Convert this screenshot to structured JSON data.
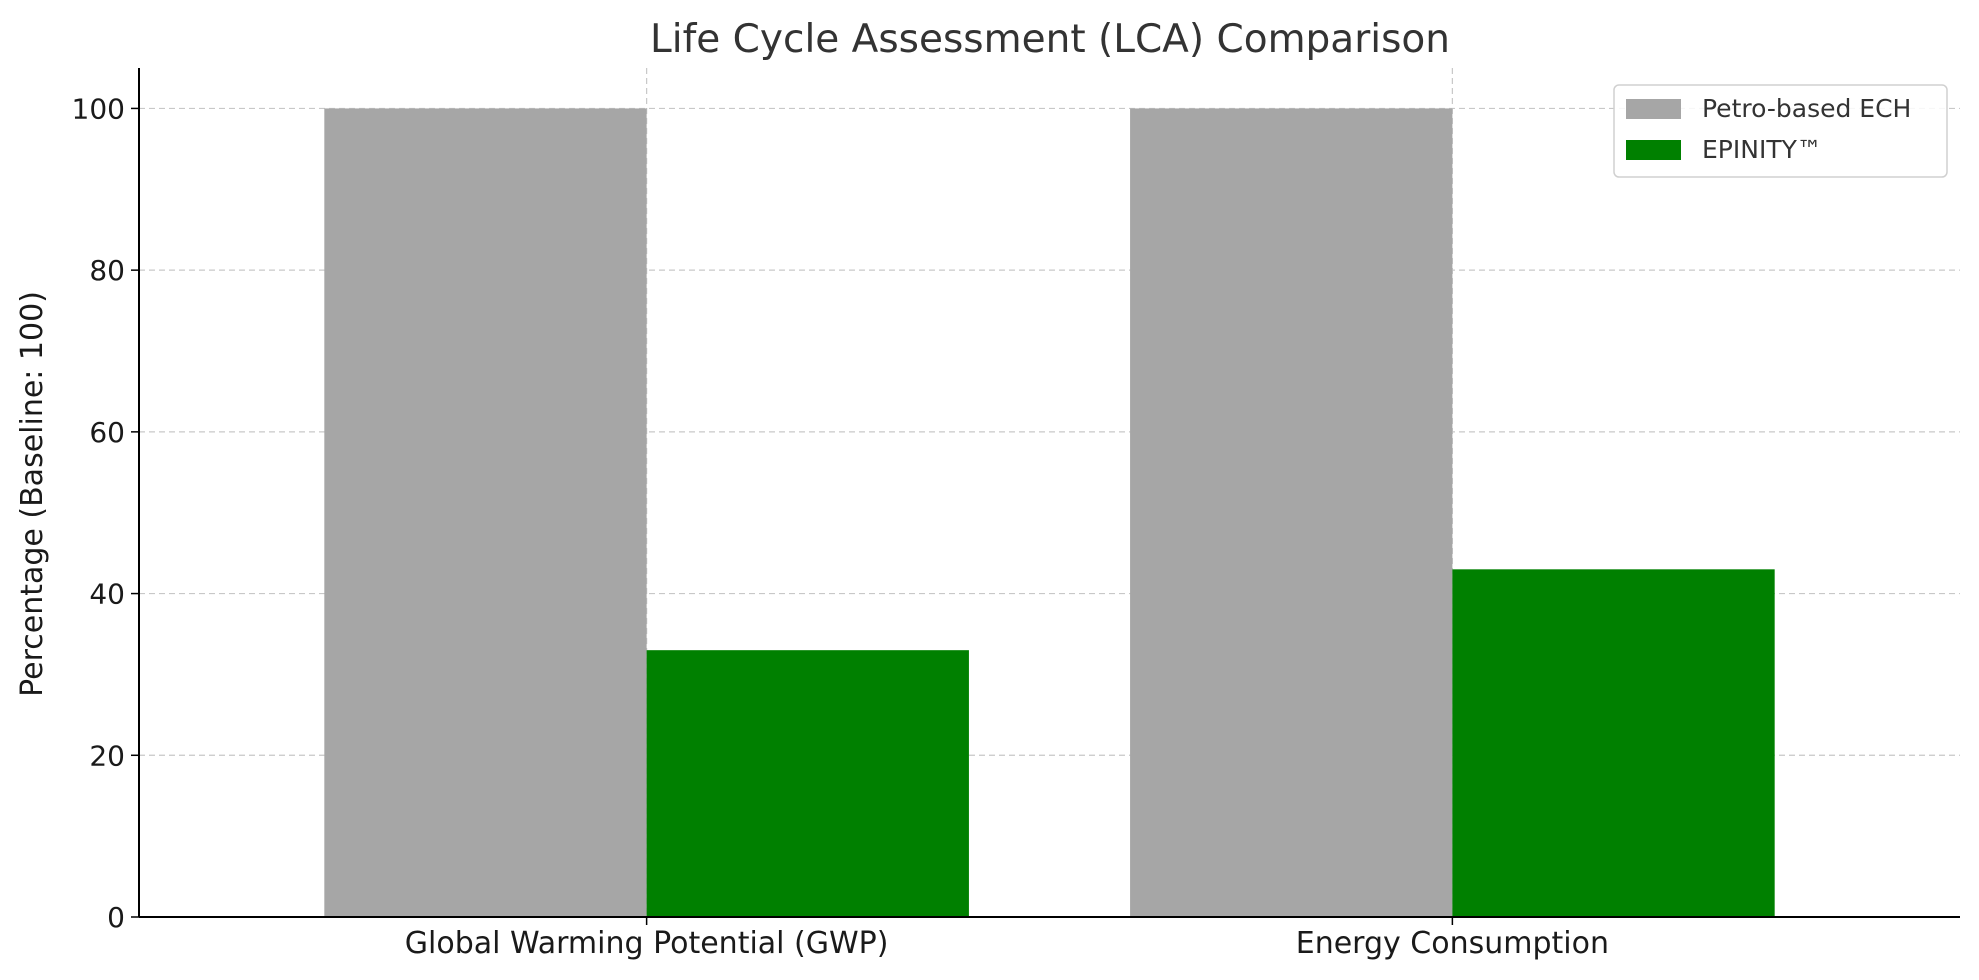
{
  "chart_data": {
    "type": "bar",
    "title": "Life Cycle Assessment (LCA) Comparison",
    "xlabel": "",
    "ylabel": "Percentage (Baseline: 100)",
    "categories": [
      "Global Warming Potential (GWP)",
      "Energy Consumption"
    ],
    "series": [
      {
        "name": "Petro-based ECH",
        "values": [
          100,
          100
        ],
        "color": "#a6a6a6"
      },
      {
        "name": "EPINITY™",
        "values": [
          33,
          43
        ],
        "color": "#008000"
      }
    ],
    "ylim": [
      0,
      105
    ],
    "yticks": [
      0,
      20,
      40,
      60,
      80,
      100
    ],
    "grid": true,
    "legend_position": "top-right"
  }
}
